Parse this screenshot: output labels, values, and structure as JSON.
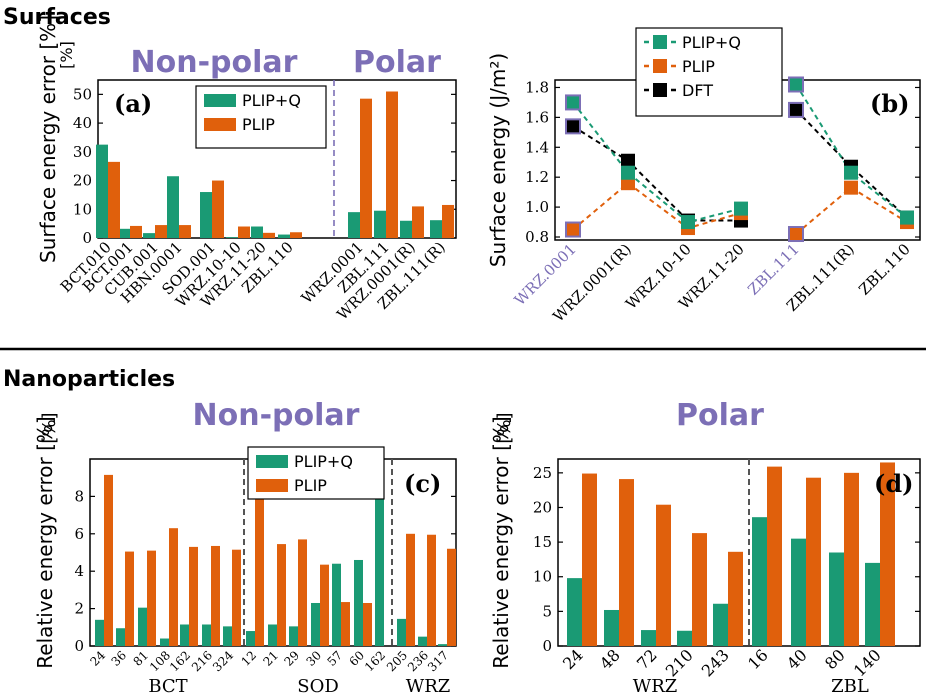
{
  "sections": {
    "surfaces_title": "Surfaces",
    "nanoparticles_title": "Nanoparticles"
  },
  "colors": {
    "plip_q": "#1a9a74",
    "plip": "#e0600c",
    "dft": "#000000",
    "accent": "#7c6fb6",
    "divider": "#7c6fb6"
  },
  "chart_data": [
    {
      "id": "a",
      "type": "bar",
      "panel_label": "(a)",
      "ylabel": "Surface energy error [%]",
      "ylim": [
        0,
        55
      ],
      "yticks": [
        0,
        10,
        20,
        30,
        40,
        50
      ],
      "categories": [
        "BCT.010",
        "BCT.001",
        "CUB.001",
        "HBN.0001",
        "SOD.001",
        "WRZ.10-10",
        "WRZ.11-20",
        "ZBL.110",
        "WRZ.0001",
        "ZBL.111",
        "WRZ.0001(R)",
        "ZBL.111(R)"
      ],
      "series": [
        {
          "name": "PLIP+Q",
          "values": [
            32.5,
            3.2,
            1.7,
            21.5,
            16,
            0.3,
            4,
            1.2,
            9,
            9.5,
            6,
            6.2
          ]
        },
        {
          "name": "PLIP",
          "values": [
            26.5,
            4.2,
            4.5,
            4.5,
            20,
            4,
            1.8,
            2,
            48.5,
            51,
            11,
            11.5
          ]
        }
      ],
      "group_labels": [
        "Non-polar",
        "Polar"
      ],
      "legend": [
        "PLIP+Q",
        "PLIP"
      ]
    },
    {
      "id": "b",
      "type": "line",
      "panel_label": "(b)",
      "ylabel": "Surface energy (J/m²)",
      "ylim": [
        0.78,
        1.85
      ],
      "yticks": [
        0.8,
        1.0,
        1.2,
        1.4,
        1.6,
        1.8
      ],
      "categories": [
        "WRZ.0001",
        "WRZ.0001(R)",
        "WRZ.10-10",
        "WRZ.11-20",
        "ZBL.111",
        "ZBL.111(R)",
        "ZBL.110"
      ],
      "highlight_categories": [
        "WRZ.0001",
        "ZBL.111"
      ],
      "series": [
        {
          "name": "PLIP+Q",
          "segments": [
            [
              1.7,
              1.23,
              0.9,
              0.99
            ],
            [
              1.82,
              1.23,
              0.93
            ]
          ]
        },
        {
          "name": "PLIP",
          "segments": [
            [
              0.85,
              1.16,
              0.86,
              0.96
            ],
            [
              0.82,
              1.13,
              0.9
            ]
          ]
        },
        {
          "name": "DFT",
          "segments": [
            [
              1.54,
              1.31,
              0.91,
              0.91
            ],
            [
              1.65,
              1.27,
              0.93
            ]
          ]
        }
      ],
      "legend": [
        "PLIP+Q",
        "PLIP",
        "DFT"
      ]
    },
    {
      "id": "c",
      "type": "bar",
      "panel_label": "(c)",
      "ylabel": "Relative energy error [%]",
      "ylim": [
        0,
        10
      ],
      "yticks": [
        0,
        2,
        4,
        6,
        8
      ],
      "categories": [
        "24",
        "36",
        "81",
        "108",
        "162",
        "216",
        "324",
        "12",
        "21",
        "29",
        "30",
        "57",
        "60",
        "162",
        "205",
        "236",
        "317"
      ],
      "groups": [
        {
          "name": "BCT",
          "count": 7
        },
        {
          "name": "SOD",
          "count": 7
        },
        {
          "name": "WRZ",
          "count": 3
        }
      ],
      "series": [
        {
          "name": "PLIP+Q",
          "values": [
            1.4,
            0.95,
            2.05,
            0.4,
            1.15,
            1.15,
            1.05,
            0.8,
            1.15,
            1.05,
            2.3,
            4.4,
            4.6,
            9.5,
            1.45,
            0.5,
            0.1
          ]
        },
        {
          "name": "PLIP",
          "values": [
            9.15,
            5.05,
            5.1,
            6.3,
            5.3,
            5.35,
            5.15,
            9.5,
            5.45,
            5.7,
            4.35,
            2.35,
            2.3,
            0,
            6.0,
            5.95,
            5.2
          ]
        }
      ],
      "title": "Non-polar",
      "legend": [
        "PLIP+Q",
        "PLIP"
      ]
    },
    {
      "id": "d",
      "type": "bar",
      "panel_label": "(d)",
      "ylabel": "Relative energy error [%]",
      "ylim": [
        0,
        27
      ],
      "yticks": [
        0,
        5,
        10,
        15,
        20,
        25
      ],
      "categories": [
        "24",
        "48",
        "72",
        "210",
        "243",
        "16",
        "40",
        "80",
        "140"
      ],
      "groups": [
        {
          "name": "WRZ",
          "count": 5
        },
        {
          "name": "ZBL",
          "count": 4
        }
      ],
      "series": [
        {
          "name": "PLIP+Q",
          "values": [
            9.8,
            5.2,
            2.3,
            2.2,
            6.1,
            18.6,
            15.5,
            13.5,
            12
          ]
        },
        {
          "name": "PLIP",
          "values": [
            24.9,
            24.1,
            20.4,
            16.3,
            13.6,
            25.9,
            24.3,
            25,
            26.5
          ]
        }
      ],
      "title": "Polar"
    }
  ]
}
